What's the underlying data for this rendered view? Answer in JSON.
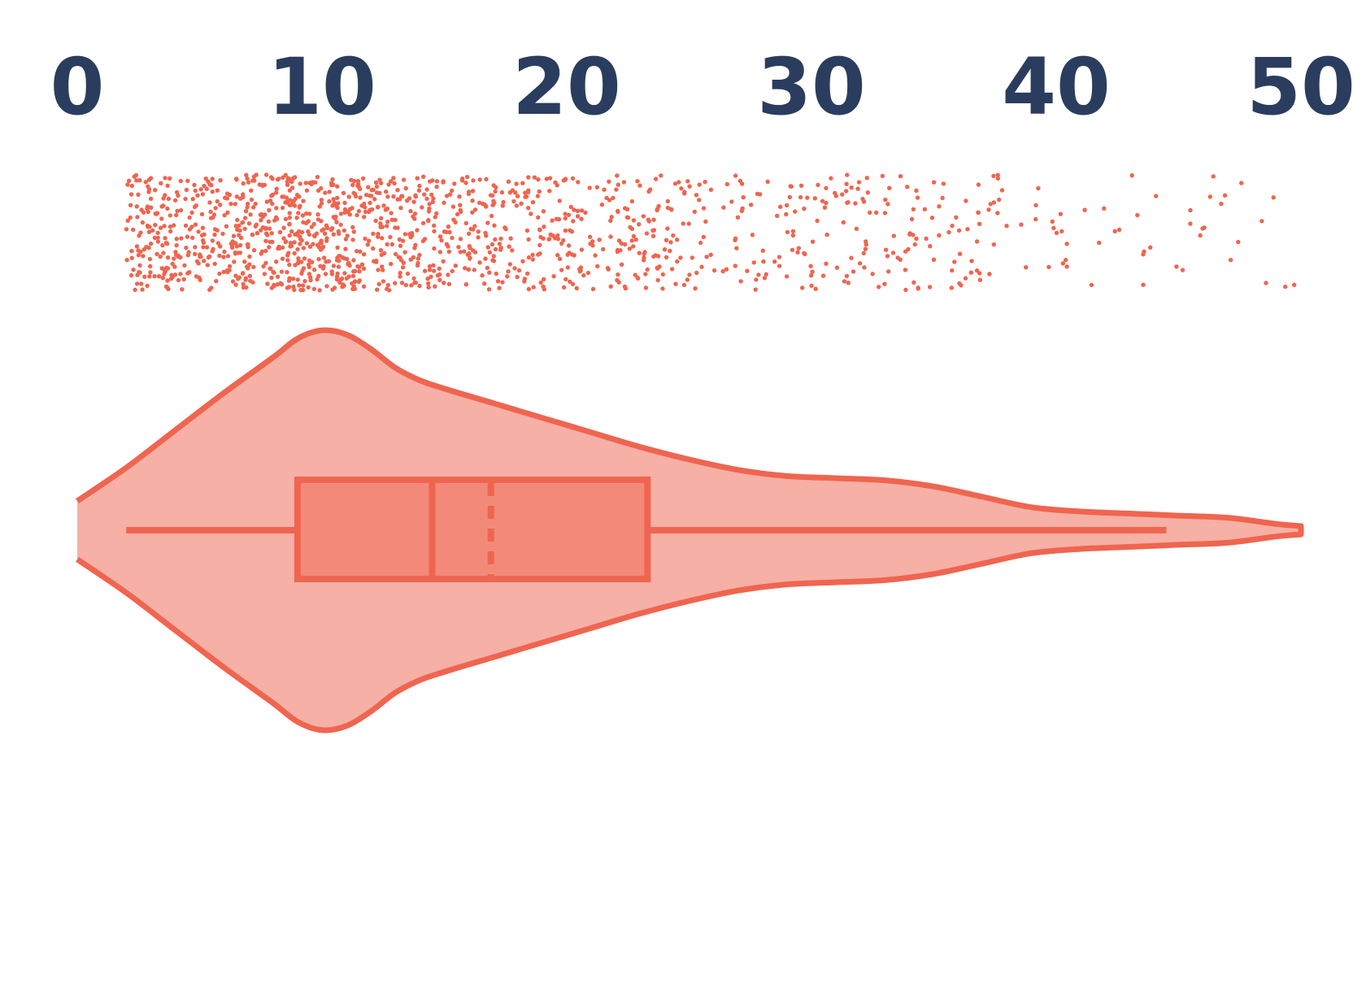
{
  "chart_data": {
    "type": "violin",
    "orientation": "horizontal",
    "title": "",
    "xlabel": "",
    "ylabel": "",
    "xlim": [
      0,
      50
    ],
    "x_ticks": [
      0,
      10,
      20,
      30,
      40,
      50
    ],
    "x_tick_labels": [
      "0",
      "10",
      "20",
      "30",
      "40",
      "50"
    ],
    "x_axis_position": "top",
    "grid": false,
    "legend": "none",
    "distribution": {
      "min": 2,
      "max": 50,
      "whisker_low": 2,
      "whisker_high": 44.5,
      "q1": 9,
      "median": 14.5,
      "mean": 16.9,
      "q3": 23.3,
      "mode": 10
    },
    "density_profile": {
      "x": [
        0,
        2,
        4,
        6,
        8,
        9,
        10,
        11,
        12,
        13,
        14,
        15,
        17,
        19,
        21,
        23,
        25,
        27,
        29,
        31,
        33,
        35,
        37,
        39,
        41,
        43,
        45,
        47,
        49,
        50
      ],
      "density": [
        0.14,
        0.3,
        0.48,
        0.66,
        0.83,
        0.92,
        0.96,
        0.94,
        0.87,
        0.78,
        0.72,
        0.68,
        0.61,
        0.54,
        0.47,
        0.4,
        0.34,
        0.29,
        0.26,
        0.25,
        0.24,
        0.21,
        0.16,
        0.11,
        0.09,
        0.08,
        0.07,
        0.06,
        0.03,
        0.02
      ]
    },
    "jitter_points": {
      "seed": 42,
      "approximate_counts": [
        {
          "from": 2,
          "to": 5,
          "n": 170
        },
        {
          "from": 5,
          "to": 8,
          "n": 190
        },
        {
          "from": 8,
          "to": 11,
          "n": 240
        },
        {
          "from": 11,
          "to": 14,
          "n": 180
        },
        {
          "from": 14,
          "to": 17,
          "n": 130
        },
        {
          "from": 17,
          "to": 20,
          "n": 110
        },
        {
          "from": 20,
          "to": 23,
          "n": 90
        },
        {
          "from": 23,
          "to": 26,
          "n": 75
        },
        {
          "from": 26,
          "to": 29,
          "n": 40
        },
        {
          "from": 29,
          "to": 32,
          "n": 55
        },
        {
          "from": 32,
          "to": 35,
          "n": 50
        },
        {
          "from": 35,
          "to": 38,
          "n": 40
        },
        {
          "from": 38,
          "to": 41,
          "n": 15
        },
        {
          "from": 41,
          "to": 44,
          "n": 12
        },
        {
          "from": 44,
          "to": 47,
          "n": 12
        },
        {
          "from": 47,
          "to": 50,
          "n": 8
        }
      ]
    },
    "colors": {
      "stroke": "#ef6550",
      "violin_fill": "#f6b0a5",
      "box_fill": "#f38a79",
      "points": "#ef6550",
      "tick_text": "#2b3d5e"
    }
  }
}
